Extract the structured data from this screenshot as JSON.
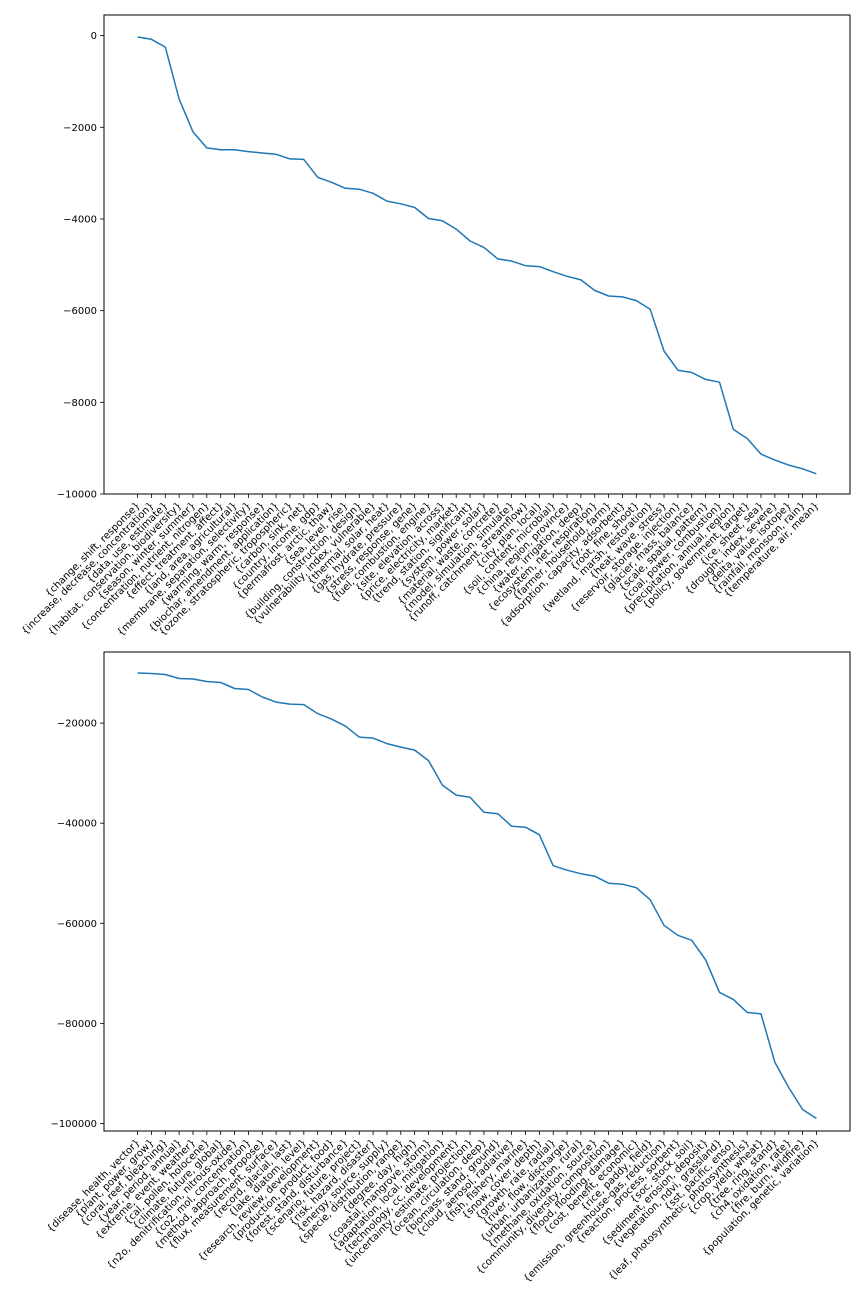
{
  "chart_data": [
    {
      "type": "line",
      "title": "",
      "xlabel": "",
      "ylabel": "",
      "ylim": [
        -10000,
        450
      ],
      "yticks": [
        0,
        -2000,
        -4000,
        -6000,
        -8000,
        -10000
      ],
      "ytick_labels": [
        "0",
        "−2000",
        "−4000",
        "−6000",
        "−8000",
        "−10000"
      ],
      "grid": false,
      "color": "#1f77b4",
      "categories": [
        "{change, shift, response}",
        "{increase, decrease, concentration}",
        "{data, use, estimate}",
        "{habitat, conservation, biodiversity}",
        "{season, winter, summer}",
        "{concentration, nutrient, nitrogen}",
        "{effect, treatment, affect}",
        "{land, area, agricultural}",
        "{membrane, separation, selectivity}",
        "{warming, warm, response}",
        "{biochar, amendment, application}",
        "{ozone, stratospheric, tropospheric}",
        "{carbon, sink, net}",
        "{country, income, gdp}",
        "{permafrost, arctic, thaw}",
        "{sea, level, rise}",
        "{building, construction, design}",
        "{vulnerability, index, vulnerable}",
        "{thermal, solar, heat}",
        "{gas, hydrate, pressure}",
        "{stress, response, gene}",
        "{fuel, combustion, engine}",
        "{site, elevation, across}",
        "{price, electricity, market}",
        "{trend, station, significant}",
        "{system, power, solar}",
        "{material, waste, concrete}",
        "{model, simulation, simulate}",
        "{runoff, catchment, streamflow}",
        "{city, plan, local}",
        "{soil, content, microbial}",
        "{china, region, province}",
        "{water, irrigation, deep}",
        "{ecosystem, net, respiration}",
        "{farmer, household, farm}",
        "{adsorption, capacity, adsorbent}",
        "{root, fine, shoot}",
        "{wetland, marsh, restoration}",
        "{heat, wave, stress}",
        "{reservoir, storage, injection}",
        "{glacier, mass, balance}",
        "{scale, spatial, pattern}",
        "{coal, power, combustion}",
        "{precipitation, annual, region}",
        "{policy, government, target}",
        "{ice, sheet, sea}",
        "{drought, index, severe}",
        "{delta, value, isotope}",
        "{rainfall, monsoon, rain}",
        "{temperature, air, mean}"
      ],
      "values": [
        -30,
        -80,
        -250,
        -1380,
        -2100,
        -2450,
        -2490,
        -2490,
        -2530,
        -2560,
        -2590,
        -2690,
        -2700,
        -3090,
        -3200,
        -3330,
        -3350,
        -3440,
        -3610,
        -3670,
        -3750,
        -3990,
        -4040,
        -4220,
        -4480,
        -4620,
        -4870,
        -4920,
        -5020,
        -5040,
        -5150,
        -5250,
        -5330,
        -5560,
        -5680,
        -5700,
        -5780,
        -5970,
        -6880,
        -7300,
        -7350,
        -7500,
        -7560,
        -8590,
        -8790,
        -9130,
        -9260,
        -9370,
        -9450,
        -9560
      ]
    },
    {
      "type": "line",
      "title": "",
      "xlabel": "",
      "ylabel": "",
      "ylim": [
        -101500,
        -5800
      ],
      "yticks": [
        -20000,
        -40000,
        -60000,
        -80000,
        -100000
      ],
      "ytick_labels": [
        "−20000",
        "−40000",
        "−60000",
        "−80000",
        "−100000"
      ],
      "grid": false,
      "color": "#1f77b4",
      "categories": [
        "{disease, health, vector}",
        "{plant, power, grow}",
        "{coral, reef, bleaching}",
        "{year, period, annual}",
        "{extreme, event, weather}",
        "{cal, pollen, holocene}",
        "{climate, future, global}",
        "{n2o, denitrification, nitrous-oxide}",
        "{co2, mol, concentration}",
        "{method, approach, propose}",
        "{flux, measurement, surface}",
        "{record, glacial, last}",
        "{lake, diatom, level}",
        "{research, review, development}",
        "{production, product, food}",
        "{forest, stand, disturbance}",
        "{scenario, future, project}",
        "{risk, hazard, disaster}",
        "{energy, source, supply}",
        "{specie, distribution, range}",
        "{degree, day, high}",
        "{coastal, mangrove, storm}",
        "{adaptation, local, mitigation}",
        "{technology, cc, development}",
        "{uncertainty, estimate, projection}",
        "{ocean, circulation, deep}",
        "{biomass, stand, ground}",
        "{cloud, aerosol, radiative}",
        "{fish, fishery, marine}",
        "{snow, cover, depth}",
        "{growth, rate, radial}",
        "{river, flow, discharge}",
        "{urban, urbanization, rural}",
        "{methane, oxidation, source}",
        "{community, diversity, composition}",
        "{flood, flooding, damage}",
        "{cost, benefit, economic}",
        "{rice, paddy, field}",
        "{emission, greenhouse-gas, reduction}",
        "{reaction, process, sorbent}",
        "{soc, stock, soil}",
        "{sediment, erosion, deposit}",
        "{vegetation, ndvi, grassland}",
        "{sst, pacific, enso}",
        "{leaf, photosynthetic, photosynthesis}",
        "{crop, yield, wheat}",
        "{tree, ring, stand}",
        "{ch4, oxidation, rate}",
        "{fire, burn, wildfire}",
        "{population, genetic, variation}"
      ],
      "values": [
        -10000,
        -10100,
        -10300,
        -11100,
        -11200,
        -11700,
        -11900,
        -13100,
        -13300,
        -14800,
        -15800,
        -16200,
        -16300,
        -18100,
        -19200,
        -20600,
        -22800,
        -23000,
        -24100,
        -24800,
        -25400,
        -27500,
        -32400,
        -34400,
        -34800,
        -37800,
        -38100,
        -40600,
        -40800,
        -42300,
        -48500,
        -49400,
        -50100,
        -50600,
        -52000,
        -52200,
        -52900,
        -55300,
        -60400,
        -62400,
        -63400,
        -67300,
        -73800,
        -75200,
        -77800,
        -78100,
        -87800,
        -92800,
        -97200,
        -99000
      ]
    }
  ]
}
